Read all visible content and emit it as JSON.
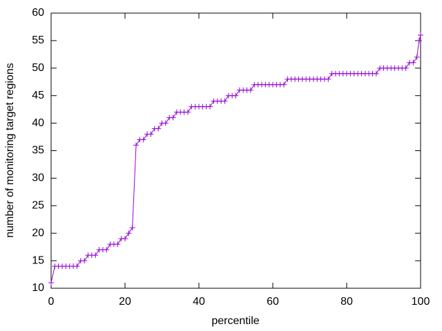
{
  "chart_data": {
    "type": "line",
    "xlabel": "percentile",
    "ylabel": "number of monitoring target regions",
    "x": [
      0,
      1,
      2,
      3,
      4,
      5,
      6,
      7,
      8,
      9,
      10,
      11,
      12,
      13,
      14,
      15,
      16,
      17,
      18,
      19,
      20,
      21,
      22,
      23,
      24,
      25,
      26,
      27,
      28,
      29,
      30,
      31,
      32,
      33,
      34,
      35,
      36,
      37,
      38,
      39,
      40,
      41,
      42,
      43,
      44,
      45,
      46,
      47,
      48,
      49,
      50,
      51,
      52,
      53,
      54,
      55,
      56,
      57,
      58,
      59,
      60,
      61,
      62,
      63,
      64,
      65,
      66,
      67,
      68,
      69,
      70,
      71,
      72,
      73,
      74,
      75,
      76,
      77,
      78,
      79,
      80,
      81,
      82,
      83,
      84,
      85,
      86,
      87,
      88,
      89,
      90,
      91,
      92,
      93,
      94,
      95,
      96,
      97,
      98,
      99,
      99.6,
      100
    ],
    "series": [
      {
        "color": "#9400d3",
        "values": [
          11,
          14,
          14,
          14,
          14,
          14,
          14,
          14,
          15,
          15,
          16,
          16,
          16,
          17,
          17,
          17,
          18,
          18,
          18,
          19,
          19,
          20,
          21,
          36,
          37,
          37,
          38,
          38,
          39,
          39,
          40,
          40,
          41,
          41,
          42,
          42,
          42,
          42,
          43,
          43,
          43,
          43,
          43,
          43,
          44,
          44,
          44,
          44,
          45,
          45,
          45,
          46,
          46,
          46,
          46,
          47,
          47,
          47,
          47,
          47,
          47,
          47,
          47,
          47,
          48,
          48,
          48,
          48,
          48,
          48,
          48,
          48,
          48,
          48,
          48,
          48,
          49,
          49,
          49,
          49,
          49,
          49,
          49,
          49,
          49,
          49,
          49,
          49,
          49,
          50,
          50,
          50,
          50,
          50,
          50,
          50,
          50,
          51,
          51,
          52,
          55,
          56
        ]
      }
    ],
    "xlim": [
      0,
      100
    ],
    "xticks": [
      0,
      20,
      40,
      60,
      80,
      100
    ],
    "ylim": [
      10,
      60
    ],
    "yticks": [
      10,
      15,
      20,
      25,
      30,
      35,
      40,
      45,
      50,
      55,
      60
    ]
  }
}
